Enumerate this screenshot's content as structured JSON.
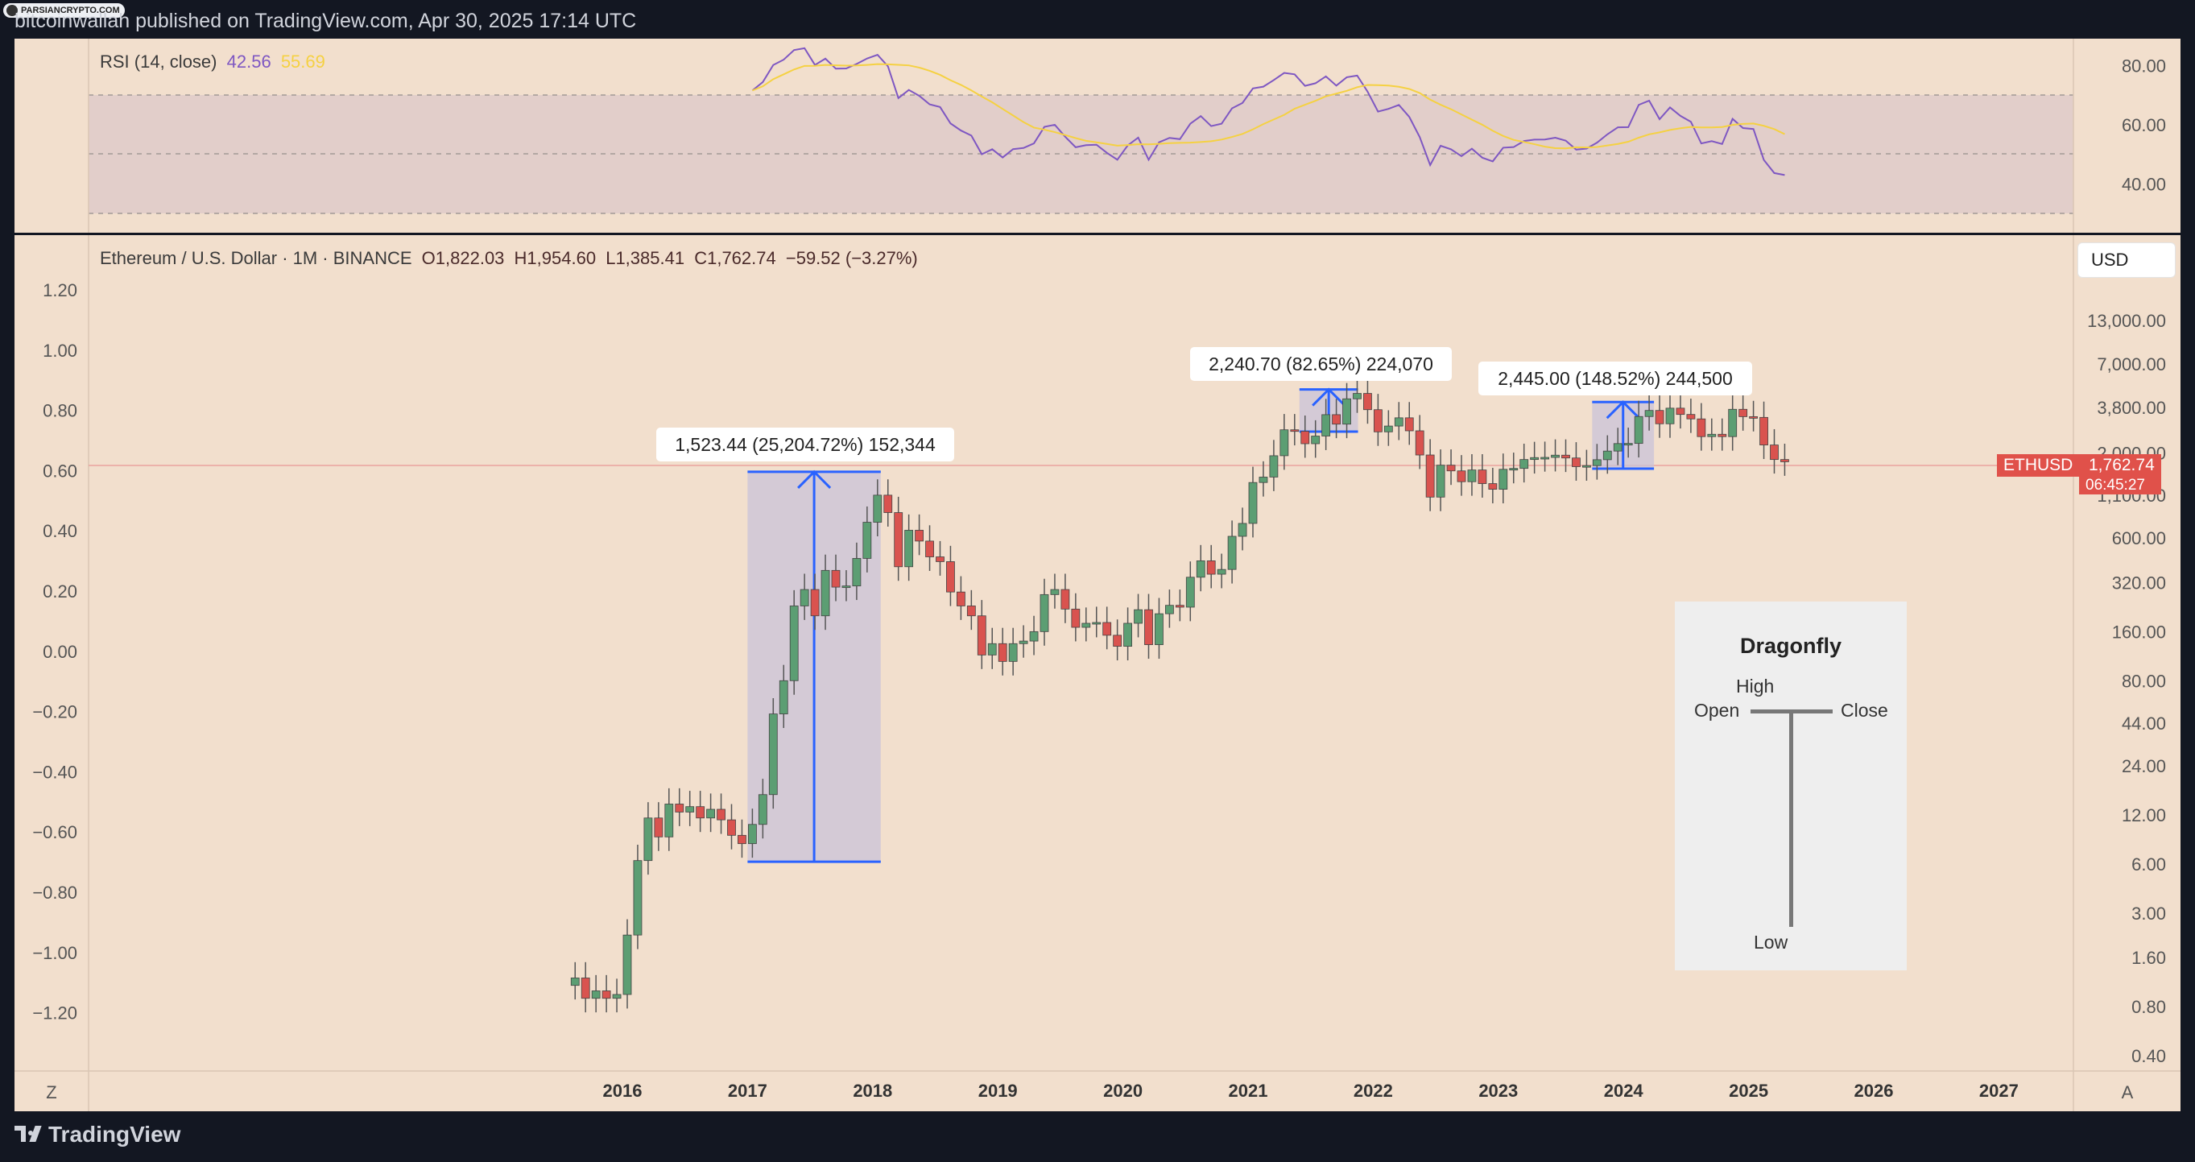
{
  "header": {
    "badge_text": "PARSIANCRYPTO.COM",
    "published_text": "bitcoinwallah published on TradingView.com, Apr 30, 2025 17:14 UTC"
  },
  "rsi_pane": {
    "label": "RSI (14, close)",
    "rsi_value": "42.56",
    "ma_value": "55.69",
    "ticks": [
      "80.00",
      "60.00",
      "40.00"
    ],
    "colors": {
      "rsi": "#7e57c2",
      "ma": "#f5d142",
      "band": "#dcc8c8",
      "overbought_fill": "#66b266"
    }
  },
  "price_pane": {
    "symbol_text": "Ethereum / U.S. Dollar · 1M · BINANCE",
    "open": "O1,822.03",
    "high": "H1,954.60",
    "low": "L1,385.41",
    "close": "C1,762.74",
    "change": "−59.52 (−3.27%)",
    "currency_button": "USD",
    "left_ticks": [
      "1.20",
      "1.00",
      "0.80",
      "0.60",
      "0.40",
      "0.20",
      "0.00",
      "−0.20",
      "−0.40",
      "−0.60",
      "−0.80",
      "−1.00",
      "−1.20"
    ],
    "right_ticks": [
      "13,000.00",
      "7,000.00",
      "3,800.00",
      "2,000.00",
      "1,100.00",
      "600.00",
      "320.00",
      "160.00",
      "80.00",
      "44.00",
      "24.00",
      "12.00",
      "6.00",
      "3.00",
      "1.60",
      "0.80",
      "0.40"
    ],
    "price_tag": {
      "symbol": "ETHUSD",
      "price": "1,762.74",
      "countdown": "06:45:27"
    },
    "x_labels": [
      "2016",
      "2017",
      "2018",
      "2019",
      "2020",
      "2021",
      "2022",
      "2023",
      "2024",
      "2025",
      "2026",
      "2027"
    ],
    "corner_left": "Z",
    "corner_right": "A",
    "colors": {
      "up": "#5c9e73",
      "down": "#d9534f",
      "measure": "#2962ff",
      "measure_fill": "#c9c3d8"
    }
  },
  "annotations": [
    {
      "text": "1,523.44 (25,204.72%) 152,344"
    },
    {
      "text": "2,240.70 (82.65%) 224,070"
    },
    {
      "text": "2,445.00 (148.52%) 244,500"
    }
  ],
  "inset": {
    "title": "Dragonfly",
    "high": "High",
    "open": "Open",
    "close": "Close",
    "low": "Low"
  },
  "footer": {
    "brand": "TradingView"
  },
  "chart_data": {
    "type": "candlestick",
    "title": "Ethereum / U.S. Dollar · 1M · BINANCE",
    "scale": "log",
    "x_range": [
      "2016",
      "2027"
    ],
    "y_ticks": [
      0.4,
      0.8,
      1.6,
      3,
      6,
      12,
      24,
      44,
      80,
      160,
      320,
      600,
      1100,
      2000,
      3800,
      7000,
      13000
    ],
    "last_close": 1762.74,
    "measure_ranges": [
      {
        "from": "2017-01",
        "to": "2018-01",
        "change": 1523.44,
        "percent": 25204.72,
        "ticks": 152344
      },
      {
        "from": "2021-05",
        "to": "2021-10",
        "change": 2240.7,
        "percent": 82.65,
        "ticks": 224070
      },
      {
        "from": "2023-10",
        "to": "2024-03",
        "change": 2445.0,
        "percent": 148.52,
        "ticks": 244500
      }
    ],
    "monthly_close": [
      [
        "2015-08",
        1.2
      ],
      [
        "2015-09",
        0.9
      ],
      [
        "2015-10",
        1.0
      ],
      [
        "2015-11",
        0.9
      ],
      [
        "2015-12",
        0.95
      ],
      [
        "2016-01",
        2.2
      ],
      [
        "2016-02",
        6.3
      ],
      [
        "2016-03",
        11.5
      ],
      [
        "2016-04",
        8.8
      ],
      [
        "2016-05",
        14.0
      ],
      [
        "2016-06",
        12.5
      ],
      [
        "2016-07",
        13.5
      ],
      [
        "2016-08",
        11.5
      ],
      [
        "2016-09",
        13.0
      ],
      [
        "2016-10",
        11.2
      ],
      [
        "2016-11",
        9.0
      ],
      [
        "2016-12",
        8.0
      ],
      [
        "2017-01",
        10.5
      ],
      [
        "2017-02",
        16.0
      ],
      [
        "2017-03",
        50.0
      ],
      [
        "2017-04",
        80.0
      ],
      [
        "2017-05",
        230.0
      ],
      [
        "2017-06",
        290.0
      ],
      [
        "2017-07",
        200.0
      ],
      [
        "2017-08",
        380.0
      ],
      [
        "2017-09",
        300.0
      ],
      [
        "2017-10",
        305.0
      ],
      [
        "2017-11",
        450.0
      ],
      [
        "2017-12",
        750.0
      ],
      [
        "2018-01",
        1100.0
      ],
      [
        "2018-02",
        860.0
      ],
      [
        "2018-03",
        400.0
      ],
      [
        "2018-04",
        670.0
      ],
      [
        "2018-05",
        575.0
      ],
      [
        "2018-06",
        460.0
      ],
      [
        "2018-07",
        430.0
      ],
      [
        "2018-08",
        280.0
      ],
      [
        "2018-09",
        230.0
      ],
      [
        "2018-10",
        200.0
      ],
      [
        "2018-11",
        115.0
      ],
      [
        "2018-12",
        135.0
      ],
      [
        "2019-01",
        105.0
      ],
      [
        "2019-02",
        135.0
      ],
      [
        "2019-03",
        140.0
      ],
      [
        "2019-04",
        160.0
      ],
      [
        "2019-05",
        270.0
      ],
      [
        "2019-06",
        290.0
      ],
      [
        "2019-07",
        220.0
      ],
      [
        "2019-08",
        170.0
      ],
      [
        "2019-09",
        180.0
      ],
      [
        "2019-10",
        182.0
      ],
      [
        "2019-11",
        152.0
      ],
      [
        "2019-12",
        130.0
      ],
      [
        "2020-01",
        180.0
      ],
      [
        "2020-02",
        218.0
      ],
      [
        "2020-03",
        133.0
      ],
      [
        "2020-04",
        206.0
      ],
      [
        "2020-05",
        232.0
      ],
      [
        "2020-06",
        226.0
      ],
      [
        "2020-07",
        345.0
      ],
      [
        "2020-08",
        435.0
      ],
      [
        "2020-09",
        360.0
      ],
      [
        "2020-10",
        385.0
      ],
      [
        "2020-11",
        615.0
      ],
      [
        "2020-12",
        738.0
      ],
      [
        "2021-01",
        1315.0
      ],
      [
        "2021-02",
        1420.0
      ],
      [
        "2021-03",
        1920.0
      ],
      [
        "2021-04",
        2770.0
      ],
      [
        "2021-05",
        2710.0
      ],
      [
        "2021-06",
        2275.0
      ],
      [
        "2021-07",
        2535.0
      ],
      [
        "2021-08",
        3430.0
      ],
      [
        "2021-09",
        3000.0
      ],
      [
        "2021-10",
        4290.0
      ],
      [
        "2021-11",
        4630.0
      ],
      [
        "2021-12",
        3680.0
      ],
      [
        "2022-01",
        2690.0
      ],
      [
        "2022-02",
        2920.0
      ],
      [
        "2022-03",
        3280.0
      ],
      [
        "2022-04",
        2730.0
      ],
      [
        "2022-05",
        1940.0
      ],
      [
        "2022-06",
        1070.0
      ],
      [
        "2022-07",
        1680.0
      ],
      [
        "2022-08",
        1550.0
      ],
      [
        "2022-09",
        1330.0
      ],
      [
        "2022-10",
        1570.0
      ],
      [
        "2022-11",
        1295.0
      ],
      [
        "2022-12",
        1195.0
      ],
      [
        "2023-01",
        1585.0
      ],
      [
        "2023-02",
        1605.0
      ],
      [
        "2023-03",
        1820.0
      ],
      [
        "2023-04",
        1870.0
      ],
      [
        "2023-05",
        1875.0
      ],
      [
        "2023-06",
        1935.0
      ],
      [
        "2023-07",
        1860.0
      ],
      [
        "2023-08",
        1645.0
      ],
      [
        "2023-09",
        1670.0
      ],
      [
        "2023-10",
        1815.0
      ],
      [
        "2023-11",
        2050.0
      ],
      [
        "2023-12",
        2280.0
      ],
      [
        "2024-01",
        2285.0
      ],
      [
        "2024-02",
        3340.0
      ],
      [
        "2024-03",
        3640.0
      ],
      [
        "2024-04",
        3015.0
      ],
      [
        "2024-05",
        3760.0
      ],
      [
        "2024-06",
        3440.0
      ],
      [
        "2024-07",
        3230.0
      ],
      [
        "2024-08",
        2515.0
      ],
      [
        "2024-09",
        2600.0
      ],
      [
        "2024-10",
        2515.0
      ],
      [
        "2024-11",
        3700.0
      ],
      [
        "2024-12",
        3335.0
      ],
      [
        "2025-01",
        3300.0
      ],
      [
        "2025-02",
        2235.0
      ],
      [
        "2025-03",
        1820.0
      ],
      [
        "2025-04",
        1762.74
      ]
    ]
  }
}
